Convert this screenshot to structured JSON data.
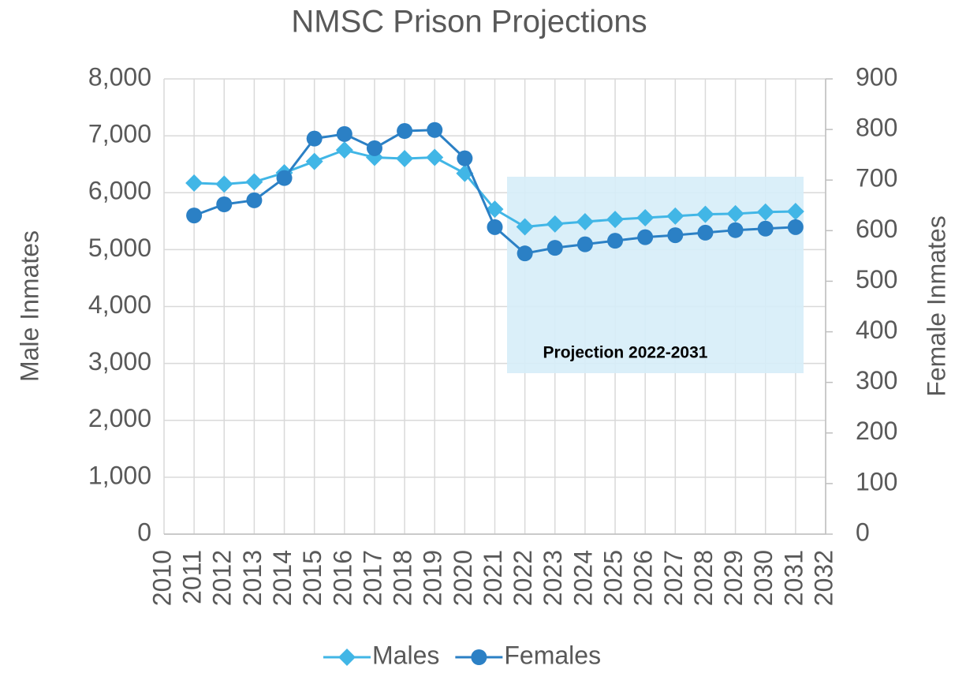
{
  "chart_data": {
    "type": "line",
    "title": "NMSC Prison Projections",
    "y_label": "Male Inmates",
    "y2_label": "Female Inmates",
    "x": [
      2011,
      2012,
      2013,
      2014,
      2015,
      2016,
      2017,
      2018,
      2019,
      2020,
      2021,
      2022,
      2023,
      2024,
      2025,
      2026,
      2027,
      2028,
      2029,
      2030,
      2031
    ],
    "series": [
      {
        "name": "Males",
        "color": "#41b6e6",
        "marker": "diamond",
        "values": [
          6170,
          6150,
          6190,
          6350,
          6550,
          6750,
          6620,
          6600,
          6620,
          6340,
          5710,
          5400,
          5450,
          5490,
          5530,
          5560,
          5590,
          5620,
          5630,
          5660,
          5670
        ]
      },
      {
        "name": "Females",
        "color": "#2b80c5",
        "marker": "circle",
        "axis": "y2",
        "values": [
          630,
          652,
          660,
          704,
          782,
          791,
          763,
          797,
          799,
          743,
          607,
          555,
          566,
          573,
          580,
          587,
          591,
          596,
          601,
          604,
          607
        ]
      }
    ],
    "xlim": [
      2010,
      2032
    ],
    "xticks": [
      2010,
      2011,
      2012,
      2013,
      2014,
      2015,
      2016,
      2017,
      2018,
      2019,
      2020,
      2021,
      2022,
      2023,
      2024,
      2025,
      2026,
      2027,
      2028,
      2029,
      2030,
      2031,
      2032
    ],
    "ylim": [
      0,
      8000
    ],
    "yticks": [
      0,
      {
        "value": 1000,
        "label": "1,000"
      },
      {
        "value": 2000,
        "label": "2,000"
      },
      {
        "value": 3000,
        "label": "3,000"
      },
      {
        "value": 4000,
        "label": "4,000"
      },
      {
        "value": 5000,
        "label": "5,000"
      },
      {
        "value": 6000,
        "label": "6,000"
      },
      {
        "value": 7000,
        "label": "7,000"
      },
      {
        "value": 8000,
        "label": "8,000"
      }
    ],
    "y2lim": [
      0,
      900
    ],
    "y2ticks": [
      0,
      100,
      200,
      300,
      400,
      500,
      600,
      700,
      800,
      900
    ],
    "annotation": "Projection 2022-2031",
    "grid": true,
    "legend": "bottom"
  }
}
